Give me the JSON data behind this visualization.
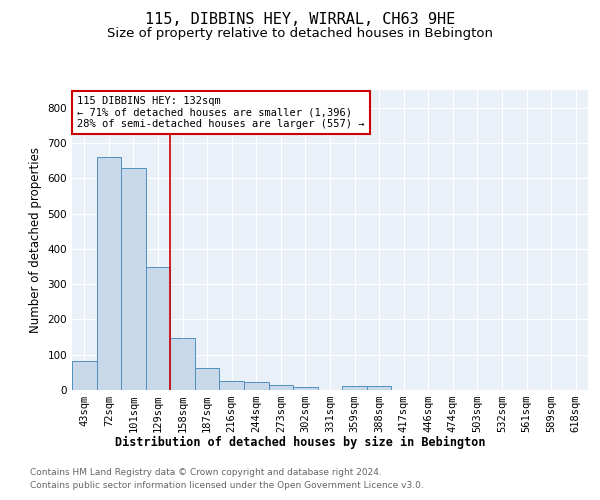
{
  "title": "115, DIBBINS HEY, WIRRAL, CH63 9HE",
  "subtitle": "Size of property relative to detached houses in Bebington",
  "xlabel": "Distribution of detached houses by size in Bebington",
  "ylabel": "Number of detached properties",
  "footer_line1": "Contains HM Land Registry data © Crown copyright and database right 2024.",
  "footer_line2": "Contains public sector information licensed under the Open Government Licence v3.0.",
  "bar_labels": [
    "43sqm",
    "72sqm",
    "101sqm",
    "129sqm",
    "158sqm",
    "187sqm",
    "216sqm",
    "244sqm",
    "273sqm",
    "302sqm",
    "331sqm",
    "359sqm",
    "388sqm",
    "417sqm",
    "446sqm",
    "474sqm",
    "503sqm",
    "532sqm",
    "561sqm",
    "589sqm",
    "618sqm"
  ],
  "bar_heights": [
    82,
    660,
    630,
    348,
    148,
    62,
    25,
    22,
    13,
    8,
    0,
    10,
    10,
    0,
    0,
    0,
    0,
    0,
    0,
    0,
    0
  ],
  "bar_color": "#c8d8e8",
  "bar_edge_color": "#5090c0",
  "red_line_x": 3.5,
  "annotation_text": "115 DIBBINS HEY: 132sqm\n← 71% of detached houses are smaller (1,396)\n28% of semi-detached houses are larger (557) →",
  "annotation_box_color": "#ffffff",
  "annotation_box_edge": "#cc0000",
  "ylim": [
    0,
    850
  ],
  "yticks": [
    0,
    100,
    200,
    300,
    400,
    500,
    600,
    700,
    800
  ],
  "background_color": "#eaf0f8",
  "grid_color": "#ffffff",
  "title_fontsize": 11,
  "subtitle_fontsize": 9.5,
  "ylabel_fontsize": 8.5,
  "xlabel_fontsize": 8.5,
  "tick_fontsize": 7.5,
  "annotation_fontsize": 7.5,
  "footer_fontsize": 6.5
}
